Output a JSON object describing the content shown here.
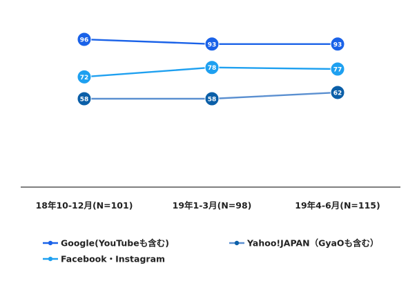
{
  "chart_data": {
    "type": "line",
    "categories": [
      "18年10-12月(N=101)",
      "19年1-3月(N=98)",
      "19年4-6月(N=115)"
    ],
    "ylim": [
      0,
      100
    ],
    "grid": false,
    "legend_position": "bottom",
    "series": [
      {
        "name": "Google(YouTubeも含む)",
        "values": [
          96,
          93,
          93
        ],
        "color": "#1a62e8",
        "label_text_color": "#ffffff"
      },
      {
        "name": "Yahoo!JAPAN（GyaOも含む）",
        "values": [
          58,
          58,
          62
        ],
        "color": "#5a8fd0",
        "marker_color": "#0b5fa8",
        "label_text_color": "#ffffff"
      },
      {
        "name": "Facebook・Instagram",
        "values": [
          72,
          78,
          77
        ],
        "color": "#1ea0f0",
        "label_text_color": "#ffffff"
      }
    ],
    "axis_color": "#333333"
  }
}
